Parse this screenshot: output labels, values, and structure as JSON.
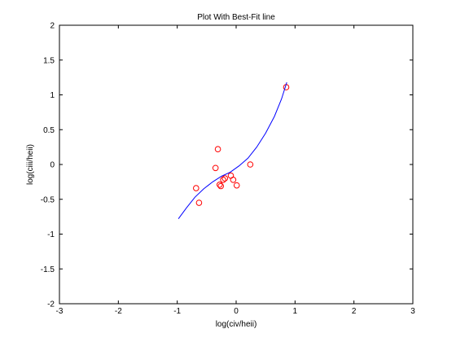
{
  "chart_data": {
    "type": "scatter",
    "title": "Plot With Best-Fit line",
    "xlabel": "log(civ/heii)",
    "ylabel": "log(ciii/heii)",
    "xlim": [
      -3,
      3
    ],
    "ylim": [
      -2,
      2
    ],
    "xticks": [
      -3,
      -2,
      -1,
      0,
      1,
      2,
      3
    ],
    "xtick_labels": [
      "-3",
      "-2",
      "-1",
      "0",
      "1",
      "2",
      "3"
    ],
    "yticks": [
      -2,
      -1.5,
      -1,
      -0.5,
      0,
      0.5,
      1,
      1.5,
      2
    ],
    "ytick_labels": [
      "-2",
      "-1.5",
      "-1",
      "-0.5",
      "0",
      "0.5",
      "1",
      "1.5",
      "2"
    ],
    "grid": false,
    "series": [
      {
        "kind": "scatter",
        "marker": "open-circle",
        "color": "#ff0000",
        "points": [
          [
            -0.68,
            -0.34
          ],
          [
            -0.63,
            -0.55
          ],
          [
            -0.35,
            -0.05
          ],
          [
            -0.31,
            0.22
          ],
          [
            -0.28,
            -0.29
          ],
          [
            -0.26,
            -0.31
          ],
          [
            -0.22,
            -0.22
          ],
          [
            -0.19,
            -0.2
          ],
          [
            -0.09,
            -0.16
          ],
          [
            -0.05,
            -0.22
          ],
          [
            0.01,
            -0.3
          ],
          [
            0.24,
            0.0
          ],
          [
            0.85,
            1.11
          ]
        ]
      },
      {
        "kind": "line",
        "color": "#0000ff",
        "points": [
          [
            -0.98,
            -0.78
          ],
          [
            -0.85,
            -0.63
          ],
          [
            -0.7,
            -0.47
          ],
          [
            -0.55,
            -0.35
          ],
          [
            -0.4,
            -0.25
          ],
          [
            -0.25,
            -0.17
          ],
          [
            -0.1,
            -0.11
          ],
          [
            0.05,
            -0.02
          ],
          [
            0.2,
            0.09
          ],
          [
            0.35,
            0.25
          ],
          [
            0.5,
            0.45
          ],
          [
            0.65,
            0.69
          ],
          [
            0.77,
            0.94
          ],
          [
            0.86,
            1.18
          ]
        ]
      }
    ]
  }
}
